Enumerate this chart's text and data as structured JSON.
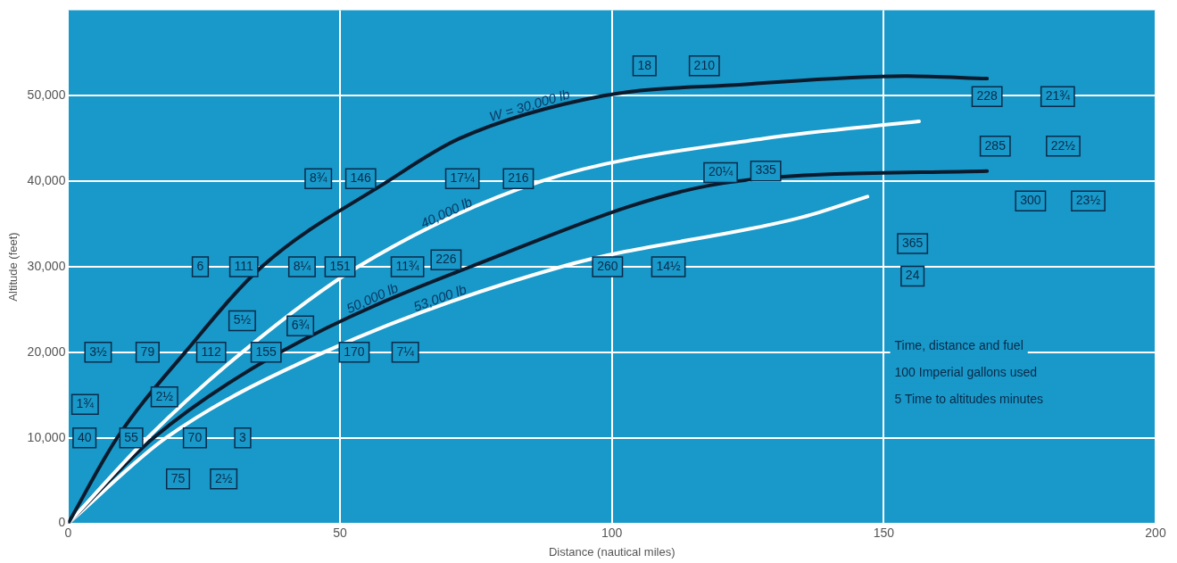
{
  "chart_data": {
    "type": "line",
    "xlabel": "Distance (nautical miles)",
    "ylabel": "Altitude (feet)",
    "xlim": [
      0,
      200
    ],
    "xticks": [
      0,
      50,
      100,
      150,
      200
    ],
    "ylim": [
      0,
      60000
    ],
    "yticks": [
      0,
      {
        "value": 10000,
        "label": "10,000"
      },
      {
        "value": 20000,
        "label": "20,000"
      },
      {
        "value": 30000,
        "label": "30,000"
      },
      {
        "value": 40000,
        "label": "40,000"
      },
      {
        "value": 50000,
        "label": "50,000"
      }
    ],
    "grid": true,
    "marker": "none",
    "line_style": "solid",
    "series": [
      {
        "name": "W = 30,000 lb",
        "color": "#0b1a2c",
        "x": [
          0,
          9,
          21.5,
          35.6,
          58.8,
          72,
          98.5,
          124,
          154,
          169
        ],
        "values": [
          0,
          10000,
          20000,
          30000,
          40000,
          45000,
          50000,
          51300,
          52300,
          52000
        ]
      },
      {
        "name": "40,000 lb",
        "color": "#ffffff",
        "x": [
          0,
          14.6,
          32,
          53.3,
          87,
          128,
          156.5
        ],
        "values": [
          0,
          10000,
          20000,
          30000,
          40000,
          45000,
          47000
        ]
      },
      {
        "name": "50,000 lb",
        "color": "#0b1a2c",
        "x": [
          0,
          15.7,
          39,
          74,
          123,
          169
        ],
        "values": [
          0,
          10000,
          20000,
          30000,
          40000,
          41200
        ]
      },
      {
        "name": "53,000 lb",
        "color": "#ffffff",
        "x": [
          0,
          18,
          47,
          90.7,
          135,
          147
        ],
        "values": [
          0,
          10000,
          20000,
          30000,
          35800,
          38200
        ]
      }
    ],
    "annotations": [
      {
        "text": "18",
        "x": 106,
        "y": 53500
      },
      {
        "text": "210",
        "x": 117,
        "y": 53500
      },
      {
        "text": "228",
        "x": 169,
        "y": 49900
      },
      {
        "text": "21¾",
        "x": 182,
        "y": 49900
      },
      {
        "text": "285",
        "x": 170.5,
        "y": 44100
      },
      {
        "text": "22½",
        "x": 183,
        "y": 44100
      },
      {
        "text": "300",
        "x": 177,
        "y": 37700
      },
      {
        "text": "23½",
        "x": 187.6,
        "y": 37700
      },
      {
        "text": "365",
        "x": 155.3,
        "y": 32700
      },
      {
        "text": "24",
        "x": 155.3,
        "y": 28900
      },
      {
        "text": "8¾",
        "x": 46,
        "y": 40300
      },
      {
        "text": "146",
        "x": 53.8,
        "y": 40300
      },
      {
        "text": "17¼",
        "x": 72.5,
        "y": 40300
      },
      {
        "text": "216",
        "x": 82.8,
        "y": 40300
      },
      {
        "text": "20¼",
        "x": 120,
        "y": 41000
      },
      {
        "text": "335",
        "x": 128.3,
        "y": 41200
      },
      {
        "text": "6",
        "x": 24.3,
        "y": 30000
      },
      {
        "text": "111",
        "x": 32.3,
        "y": 30000
      },
      {
        "text": "8¼",
        "x": 43,
        "y": 30000
      },
      {
        "text": "151",
        "x": 50,
        "y": 30000
      },
      {
        "text": "11¾",
        "x": 62.4,
        "y": 30000
      },
      {
        "text": "226",
        "x": 69.5,
        "y": 30800
      },
      {
        "text": "260",
        "x": 99.2,
        "y": 30000
      },
      {
        "text": "14½",
        "x": 110.4,
        "y": 30000
      },
      {
        "text": "3½",
        "x": 5.5,
        "y": 20000
      },
      {
        "text": "79",
        "x": 14.6,
        "y": 20000
      },
      {
        "text": "112",
        "x": 26.3,
        "y": 20000
      },
      {
        "text": "5½",
        "x": 32,
        "y": 23700
      },
      {
        "text": "155",
        "x": 36.4,
        "y": 20000
      },
      {
        "text": "6¾",
        "x": 42.7,
        "y": 23100
      },
      {
        "text": "170",
        "x": 52.6,
        "y": 20000
      },
      {
        "text": "7¼",
        "x": 62,
        "y": 20000
      },
      {
        "text": "1¾",
        "x": 3.1,
        "y": 13900
      },
      {
        "text": "40",
        "x": 3,
        "y": 10000
      },
      {
        "text": "55",
        "x": 11.6,
        "y": 10000
      },
      {
        "text": "2½",
        "x": 17.7,
        "y": 14800
      },
      {
        "text": "70",
        "x": 23.3,
        "y": 10000
      },
      {
        "text": "3",
        "x": 32.1,
        "y": 10000
      },
      {
        "text": "75",
        "x": 20.2,
        "y": 5200
      },
      {
        "text": "2½",
        "x": 28.6,
        "y": 5200
      },
      "Time, distance and fuel",
      "100 Imperial gallons used",
      "5 Time to altitudes minutes"
    ]
  }
}
